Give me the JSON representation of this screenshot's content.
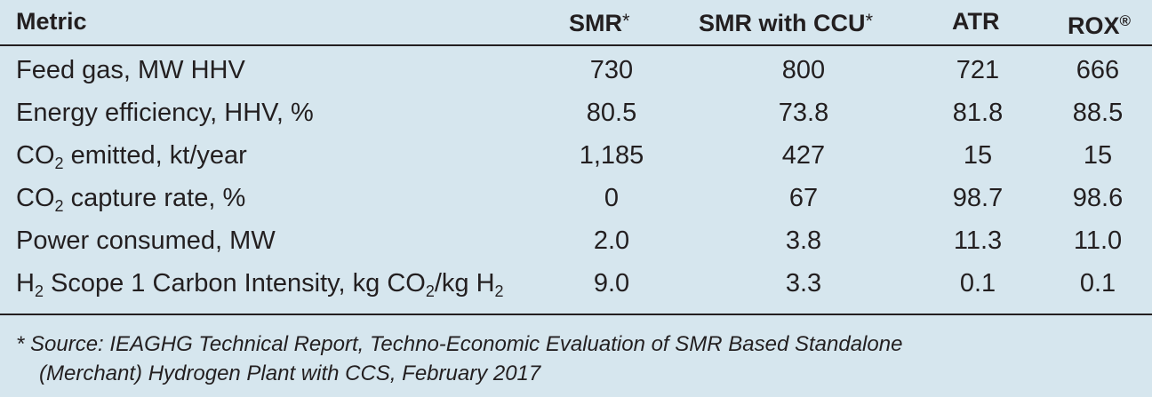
{
  "table": {
    "headers": {
      "metric": "Metric",
      "smr": "SMR",
      "smr_mark": "*",
      "smr_ccu": "SMR with CCU",
      "smr_ccu_mark": "*",
      "atr": "ATR",
      "rox": "ROX",
      "rox_mark": "®"
    },
    "rows": [
      {
        "label_pre": "Feed gas, MW HHV",
        "smr": "730",
        "smr_ccu": "800",
        "atr": "721",
        "rox": "666"
      },
      {
        "label_pre": "Energy efficiency, HHV, %",
        "smr": "80.5",
        "smr_ccu": "73.8",
        "atr": "81.8",
        "rox": "88.5"
      },
      {
        "label_pre": "CO",
        "label_sub": "2",
        "label_post": " emitted, kt/year",
        "smr": "1,185",
        "smr_ccu": "427",
        "atr": "15",
        "rox": "15"
      },
      {
        "label_pre": "CO",
        "label_sub": "2",
        "label_post": " capture rate, %",
        "smr": "0",
        "smr_ccu": "67",
        "atr": "98.7",
        "rox": "98.6"
      },
      {
        "label_pre": "Power consumed, MW",
        "smr": "2.0",
        "smr_ccu": "3.8",
        "atr": "11.3",
        "rox": "11.0"
      },
      {
        "label_pre": "H",
        "label_sub": "2",
        "label_mid": " Scope 1 Carbon Intensity, kg CO",
        "label_sub2": "2",
        "label_mid2": "/kg H",
        "label_sub3": "2",
        "smr": "9.0",
        "smr_ccu": "3.3",
        "atr": "0.1",
        "rox": "0.1"
      }
    ]
  },
  "footnote": {
    "line1": "* Source: IEAGHG Technical Report, Techno-Economic Evaluation of SMR Based Standalone",
    "line2": "(Merchant) Hydrogen Plant with CCS, February 2017"
  },
  "colors": {
    "background": "#d6e6ee",
    "text": "#231f20"
  }
}
